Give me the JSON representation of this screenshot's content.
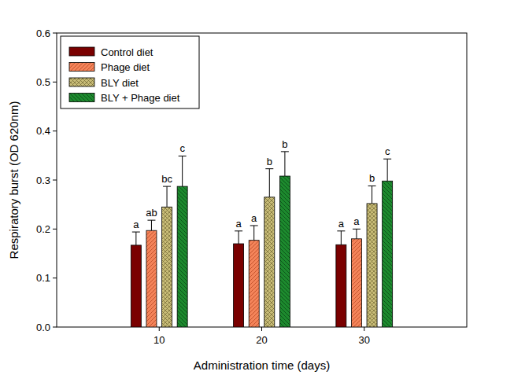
{
  "chart_data": {
    "type": "bar",
    "x_label": "Administration time (days)",
    "y_label": "Respiratory burst (OD 620nm)",
    "categories": [
      "10",
      "20",
      "30"
    ],
    "ylim": [
      0,
      0.6
    ],
    "yticks": [
      {
        "value": 0,
        "label": "0.0"
      },
      0.1,
      0.2,
      0.3,
      0.4,
      0.5,
      0.6
    ],
    "grid": false,
    "legend": "upper left",
    "series": [
      {
        "name": "Control diet",
        "color": "#7a0000",
        "values": [
          0.167,
          0.17,
          0.168
        ],
        "errors": [
          0.027,
          0.026,
          0.028
        ],
        "letters": [
          "a",
          "a",
          "a"
        ]
      },
      {
        "name": "Phage diet",
        "color": "#f4845a",
        "values": [
          0.197,
          0.177,
          0.18
        ],
        "errors": [
          0.021,
          0.03,
          0.02
        ],
        "letters": [
          "ab",
          "a",
          "a"
        ]
      },
      {
        "name": "BLY diet",
        "color": "#c9bd78",
        "values": [
          0.245,
          0.265,
          0.252
        ],
        "errors": [
          0.042,
          0.058,
          0.036
        ],
        "letters": [
          "bc",
          "b",
          "b"
        ]
      },
      {
        "name": "BLY + Phage diet",
        "color": "#1d8a2e",
        "values": [
          0.287,
          0.308,
          0.298
        ],
        "errors": [
          0.062,
          0.05,
          0.045
        ],
        "letters": [
          "c",
          "b",
          "c"
        ]
      }
    ]
  }
}
